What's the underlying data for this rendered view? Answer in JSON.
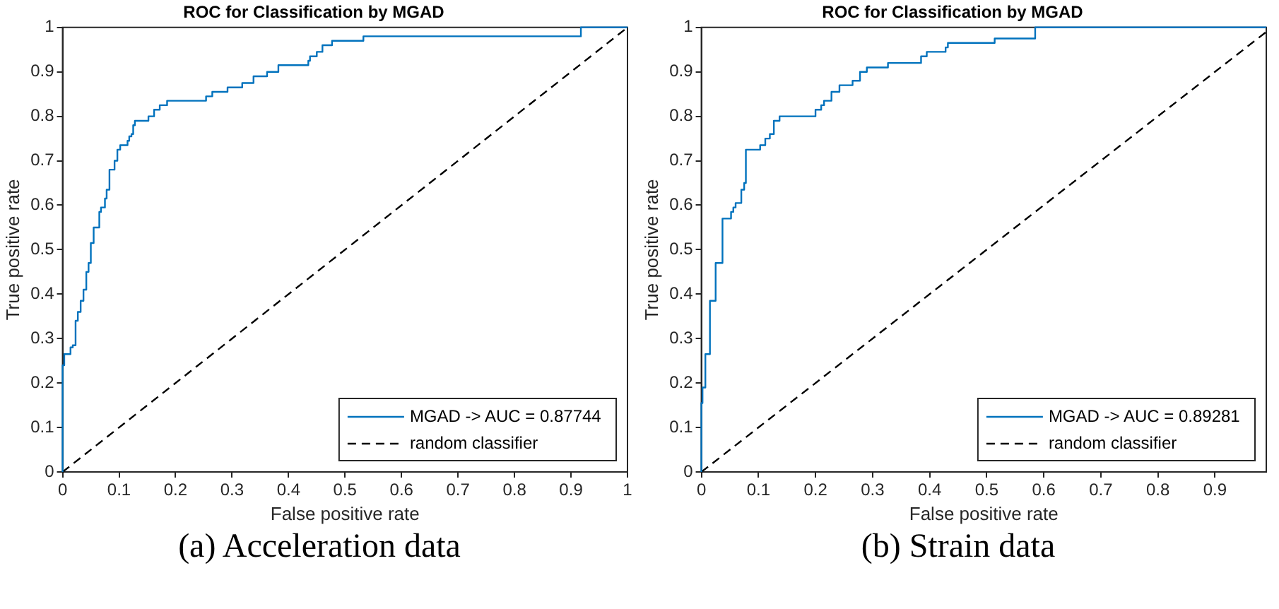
{
  "chart_data": [
    {
      "type": "line",
      "title": "ROC for Classification by MGAD",
      "xlabel": "False positive rate",
      "ylabel": "True positive rate",
      "xlim": [
        0,
        1
      ],
      "ylim": [
        0,
        1
      ],
      "xticks": [
        0,
        0.1,
        0.2,
        0.3,
        0.4,
        0.5,
        0.6,
        0.7,
        0.8,
        0.9,
        1
      ],
      "yticks": [
        0,
        0.1,
        0.2,
        0.3,
        0.4,
        0.5,
        0.6,
        0.7,
        0.8,
        0.9,
        1
      ],
      "legend": "bottom right",
      "annotations": [
        "(a) Acceleration data"
      ],
      "series": [
        {
          "name": "MGAD -> AUC = 0.87744",
          "type": "step",
          "color": "#0072bd",
          "x": [
            0,
            0,
            0.003,
            0.014,
            0.018,
            0.023,
            0.027,
            0.032,
            0.037,
            0.042,
            0.046,
            0.05,
            0.055,
            0.065,
            0.068,
            0.075,
            0.078,
            0.083,
            0.092,
            0.097,
            0.102,
            0.115,
            0.118,
            0.122,
            0.125,
            0.128,
            0.152,
            0.162,
            0.172,
            0.185,
            0.254,
            0.265,
            0.292,
            0.318,
            0.338,
            0.362,
            0.382,
            0.435,
            0.438,
            0.45,
            0.46,
            0.477,
            0.5325,
            0.9175,
            0.99,
            1
          ],
          "values": [
            0,
            0.055,
            0.24,
            0.265,
            0.28,
            0.285,
            0.34,
            0.36,
            0.385,
            0.41,
            0.45,
            0.47,
            0.515,
            0.55,
            0.585,
            0.595,
            0.615,
            0.635,
            0.68,
            0.7,
            0.725,
            0.735,
            0.745,
            0.755,
            0.76,
            0.78,
            0.79,
            0.8,
            0.815,
            0.825,
            0.835,
            0.845,
            0.855,
            0.865,
            0.875,
            0.89,
            0.9,
            0.915,
            0.925,
            0.935,
            0.945,
            0.96,
            0.97,
            0.98,
            1,
            1
          ]
        },
        {
          "name": "random classifier",
          "type": "line",
          "color": "#000000",
          "line_style": "dashed",
          "x": [
            0,
            1
          ],
          "values": [
            0,
            1
          ]
        }
      ]
    },
    {
      "type": "line",
      "title": "ROC for Classification by MGAD",
      "xlabel": "False positive rate",
      "ylabel": "True positive rate",
      "xlim": [
        0,
        0.99
      ],
      "ylim": [
        0,
        1
      ],
      "xticks": [
        0,
        0.1,
        0.2,
        0.3,
        0.4,
        0.5,
        0.6,
        0.7,
        0.8,
        0.9
      ],
      "yticks": [
        0,
        0.1,
        0.2,
        0.3,
        0.4,
        0.5,
        0.6,
        0.7,
        0.8,
        0.9,
        1
      ],
      "legend": "bottom right",
      "annotations": [
        "(b) Strain data"
      ],
      "series": [
        {
          "name": "MGAD -> AUC = 0.89281",
          "type": "step",
          "color": "#0072bd",
          "x": [
            0,
            0.002,
            0.007,
            0.015,
            0.025,
            0.037,
            0.052,
            0.056,
            0.06,
            0.07,
            0.075,
            0.078,
            0.103,
            0.112,
            0.12,
            0.127,
            0.137,
            0.2,
            0.21,
            0.215,
            0.228,
            0.242,
            0.265,
            0.278,
            0.29,
            0.327,
            0.385,
            0.395,
            0.428,
            0.432,
            0.514,
            0.585,
            0.593,
            0.99
          ],
          "values": [
            0,
            0.155,
            0.19,
            0.265,
            0.385,
            0.47,
            0.57,
            0.585,
            0.595,
            0.605,
            0.635,
            0.65,
            0.725,
            0.735,
            0.75,
            0.76,
            0.79,
            0.8,
            0.815,
            0.825,
            0.835,
            0.855,
            0.87,
            0.88,
            0.9,
            0.91,
            0.92,
            0.935,
            0.945,
            0.955,
            0.965,
            0.975,
            1,
            1
          ]
        },
        {
          "name": "random classifier",
          "type": "line",
          "color": "#000000",
          "line_style": "dashed",
          "x": [
            0,
            0.99
          ],
          "values": [
            0,
            0.99
          ]
        }
      ]
    }
  ]
}
